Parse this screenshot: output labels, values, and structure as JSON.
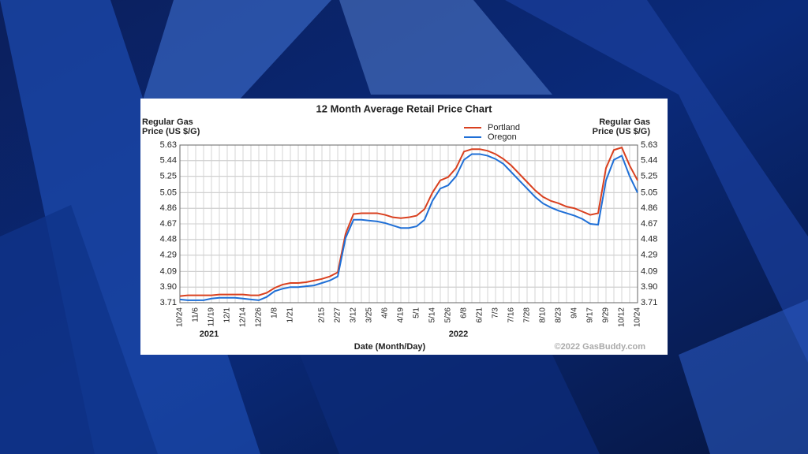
{
  "chart_data": {
    "type": "line",
    "title": "12 Month Average Retail Price Chart",
    "y_label": [
      "Regular Gas",
      "Price (US $/G)"
    ],
    "y2_label": [
      "Regular Gas",
      "Price (US $/G)"
    ],
    "x_label": "Date (Month/Day)",
    "years": [
      "2021",
      "2022"
    ],
    "credit": "©2022 GasBuddy.com",
    "categories": [
      "10/24",
      null,
      "11/6",
      null,
      "11/19",
      null,
      "12/1",
      null,
      "12/14",
      null,
      "12/26",
      null,
      "1/8",
      null,
      "1/21",
      null,
      null,
      null,
      "2/15",
      null,
      "2/27",
      null,
      "3/12",
      null,
      "3/25",
      null,
      "4/6",
      null,
      "4/19",
      null,
      "5/1",
      null,
      "5/14",
      null,
      "5/26",
      null,
      "6/8",
      null,
      "6/21",
      null,
      "7/3",
      null,
      "7/16",
      null,
      "7/28",
      null,
      "8/10",
      null,
      "8/23",
      null,
      "9/4",
      null,
      "9/17",
      null,
      "9/29",
      null,
      "10/12",
      null,
      "10/24"
    ],
    "series": [
      {
        "name": "Portland",
        "color": "#d9401f",
        "values": [
          3.79,
          3.8,
          3.8,
          3.8,
          3.8,
          3.81,
          3.81,
          3.81,
          3.81,
          3.8,
          3.8,
          3.83,
          3.89,
          3.93,
          3.95,
          3.95,
          3.96,
          3.98,
          4.0,
          4.03,
          4.08,
          4.55,
          4.79,
          4.8,
          4.8,
          4.8,
          4.78,
          4.75,
          4.74,
          4.75,
          4.77,
          4.85,
          5.05,
          5.2,
          5.24,
          5.35,
          5.55,
          5.58,
          5.58,
          5.56,
          5.52,
          5.46,
          5.38,
          5.28,
          5.18,
          5.08,
          5.0,
          4.95,
          4.92,
          4.88,
          4.86,
          4.82,
          4.78,
          4.8,
          5.35,
          5.57,
          5.6,
          5.38,
          5.2
        ]
      },
      {
        "name": "Oregon",
        "color": "#1f6fd6",
        "values": [
          3.75,
          3.74,
          3.74,
          3.74,
          3.76,
          3.77,
          3.77,
          3.77,
          3.76,
          3.75,
          3.74,
          3.78,
          3.85,
          3.88,
          3.9,
          3.9,
          3.91,
          3.92,
          3.95,
          3.98,
          4.03,
          4.5,
          4.72,
          4.72,
          4.71,
          4.7,
          4.68,
          4.65,
          4.62,
          4.62,
          4.64,
          4.72,
          4.95,
          5.1,
          5.14,
          5.25,
          5.45,
          5.52,
          5.52,
          5.5,
          5.46,
          5.4,
          5.3,
          5.2,
          5.1,
          5.0,
          4.92,
          4.87,
          4.83,
          4.8,
          4.77,
          4.73,
          4.67,
          4.66,
          5.2,
          5.45,
          5.5,
          5.25,
          5.05
        ]
      }
    ],
    "ylim": [
      3.71,
      5.63
    ],
    "yticks": [
      3.71,
      {
        "value": 3.9,
        "label": "3.90"
      },
      4.09,
      4.29,
      4.48,
      4.67,
      4.86,
      5.05,
      5.25,
      5.44,
      5.63
    ],
    "y2lim": [
      3.71,
      5.63
    ],
    "y2ticks": [
      3.71,
      {
        "value": 3.9,
        "label": "3.90"
      },
      4.09,
      4.29,
      4.48,
      4.67,
      4.86,
      5.05,
      5.25,
      5.44,
      5.63
    ],
    "grid": true
  }
}
